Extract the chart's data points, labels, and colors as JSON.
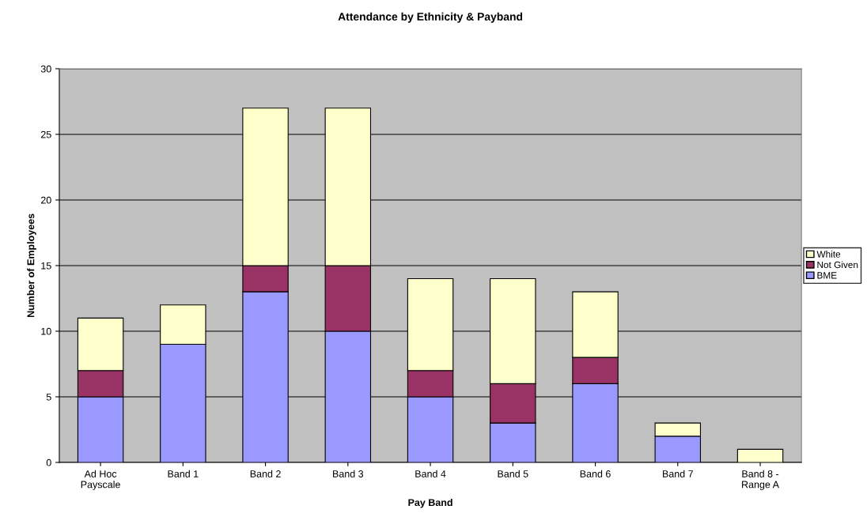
{
  "chart_data": {
    "type": "bar",
    "stacked": true,
    "title": "Attendance by Ethnicity & Payband",
    "xlabel": "Pay Band",
    "ylabel": "Number of Employees",
    "categories": [
      "Ad Hoc\nPayscale",
      "Band 1",
      "Band 2",
      "Band 3",
      "Band 4",
      "Band 5",
      "Band 6",
      "Band 7",
      "Band 8 -\nRange A"
    ],
    "series": [
      {
        "name": "BME",
        "color": "#9999ff",
        "values": [
          5,
          9,
          13,
          10,
          5,
          3,
          6,
          2,
          0
        ]
      },
      {
        "name": "Not Given",
        "color": "#993366",
        "values": [
          2,
          0,
          2,
          5,
          2,
          3,
          2,
          0,
          0
        ]
      },
      {
        "name": "White",
        "color": "#ffffcc",
        "values": [
          4,
          3,
          12,
          12,
          7,
          8,
          5,
          1,
          1
        ]
      }
    ],
    "ylim": [
      0,
      30
    ],
    "yticks": [
      0,
      5,
      10,
      15,
      20,
      25,
      30
    ],
    "grid": "y",
    "legend": "right"
  }
}
